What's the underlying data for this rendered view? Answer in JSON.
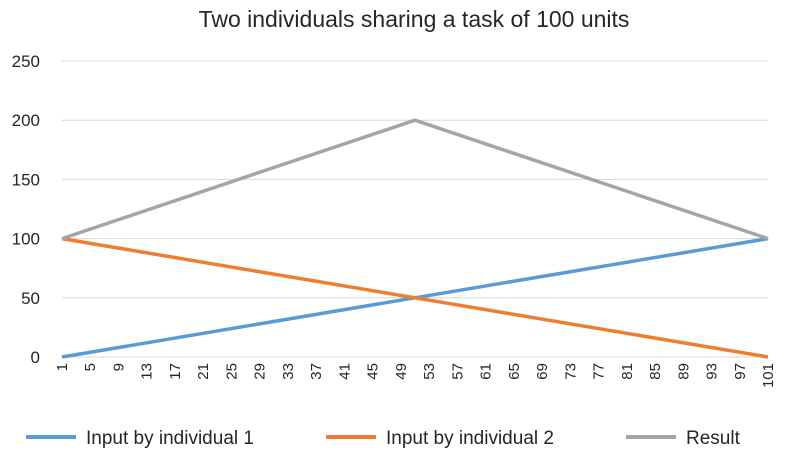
{
  "chart_data": {
    "type": "line",
    "title": "Two individuals sharing a task of 100 units",
    "xlabel": "",
    "ylabel": "",
    "x_start": 1,
    "x_end": 101,
    "x_tick_labels": [
      "1",
      "5",
      "9",
      "13",
      "17",
      "21",
      "25",
      "29",
      "33",
      "37",
      "41",
      "45",
      "49",
      "53",
      "57",
      "61",
      "65",
      "69",
      "73",
      "77",
      "81",
      "85",
      "89",
      "93",
      "97",
      "101"
    ],
    "ylim": [
      0,
      250
    ],
    "y_ticks": [
      0,
      50,
      100,
      150,
      200,
      250
    ],
    "grid": true,
    "legend_position": "bottom",
    "series": [
      {
        "name": "Input by individual 1",
        "color": "#5B9BD5",
        "points": [
          [
            1,
            0
          ],
          [
            51,
            50
          ],
          [
            101,
            100
          ]
        ]
      },
      {
        "name": "Input by individual 2",
        "color": "#ED7D31",
        "points": [
          [
            1,
            100
          ],
          [
            51,
            50
          ],
          [
            101,
            0
          ]
        ]
      },
      {
        "name": "Result",
        "color": "#A5A5A5",
        "points": [
          [
            1,
            100
          ],
          [
            51,
            200
          ],
          [
            101,
            100
          ]
        ]
      }
    ]
  }
}
